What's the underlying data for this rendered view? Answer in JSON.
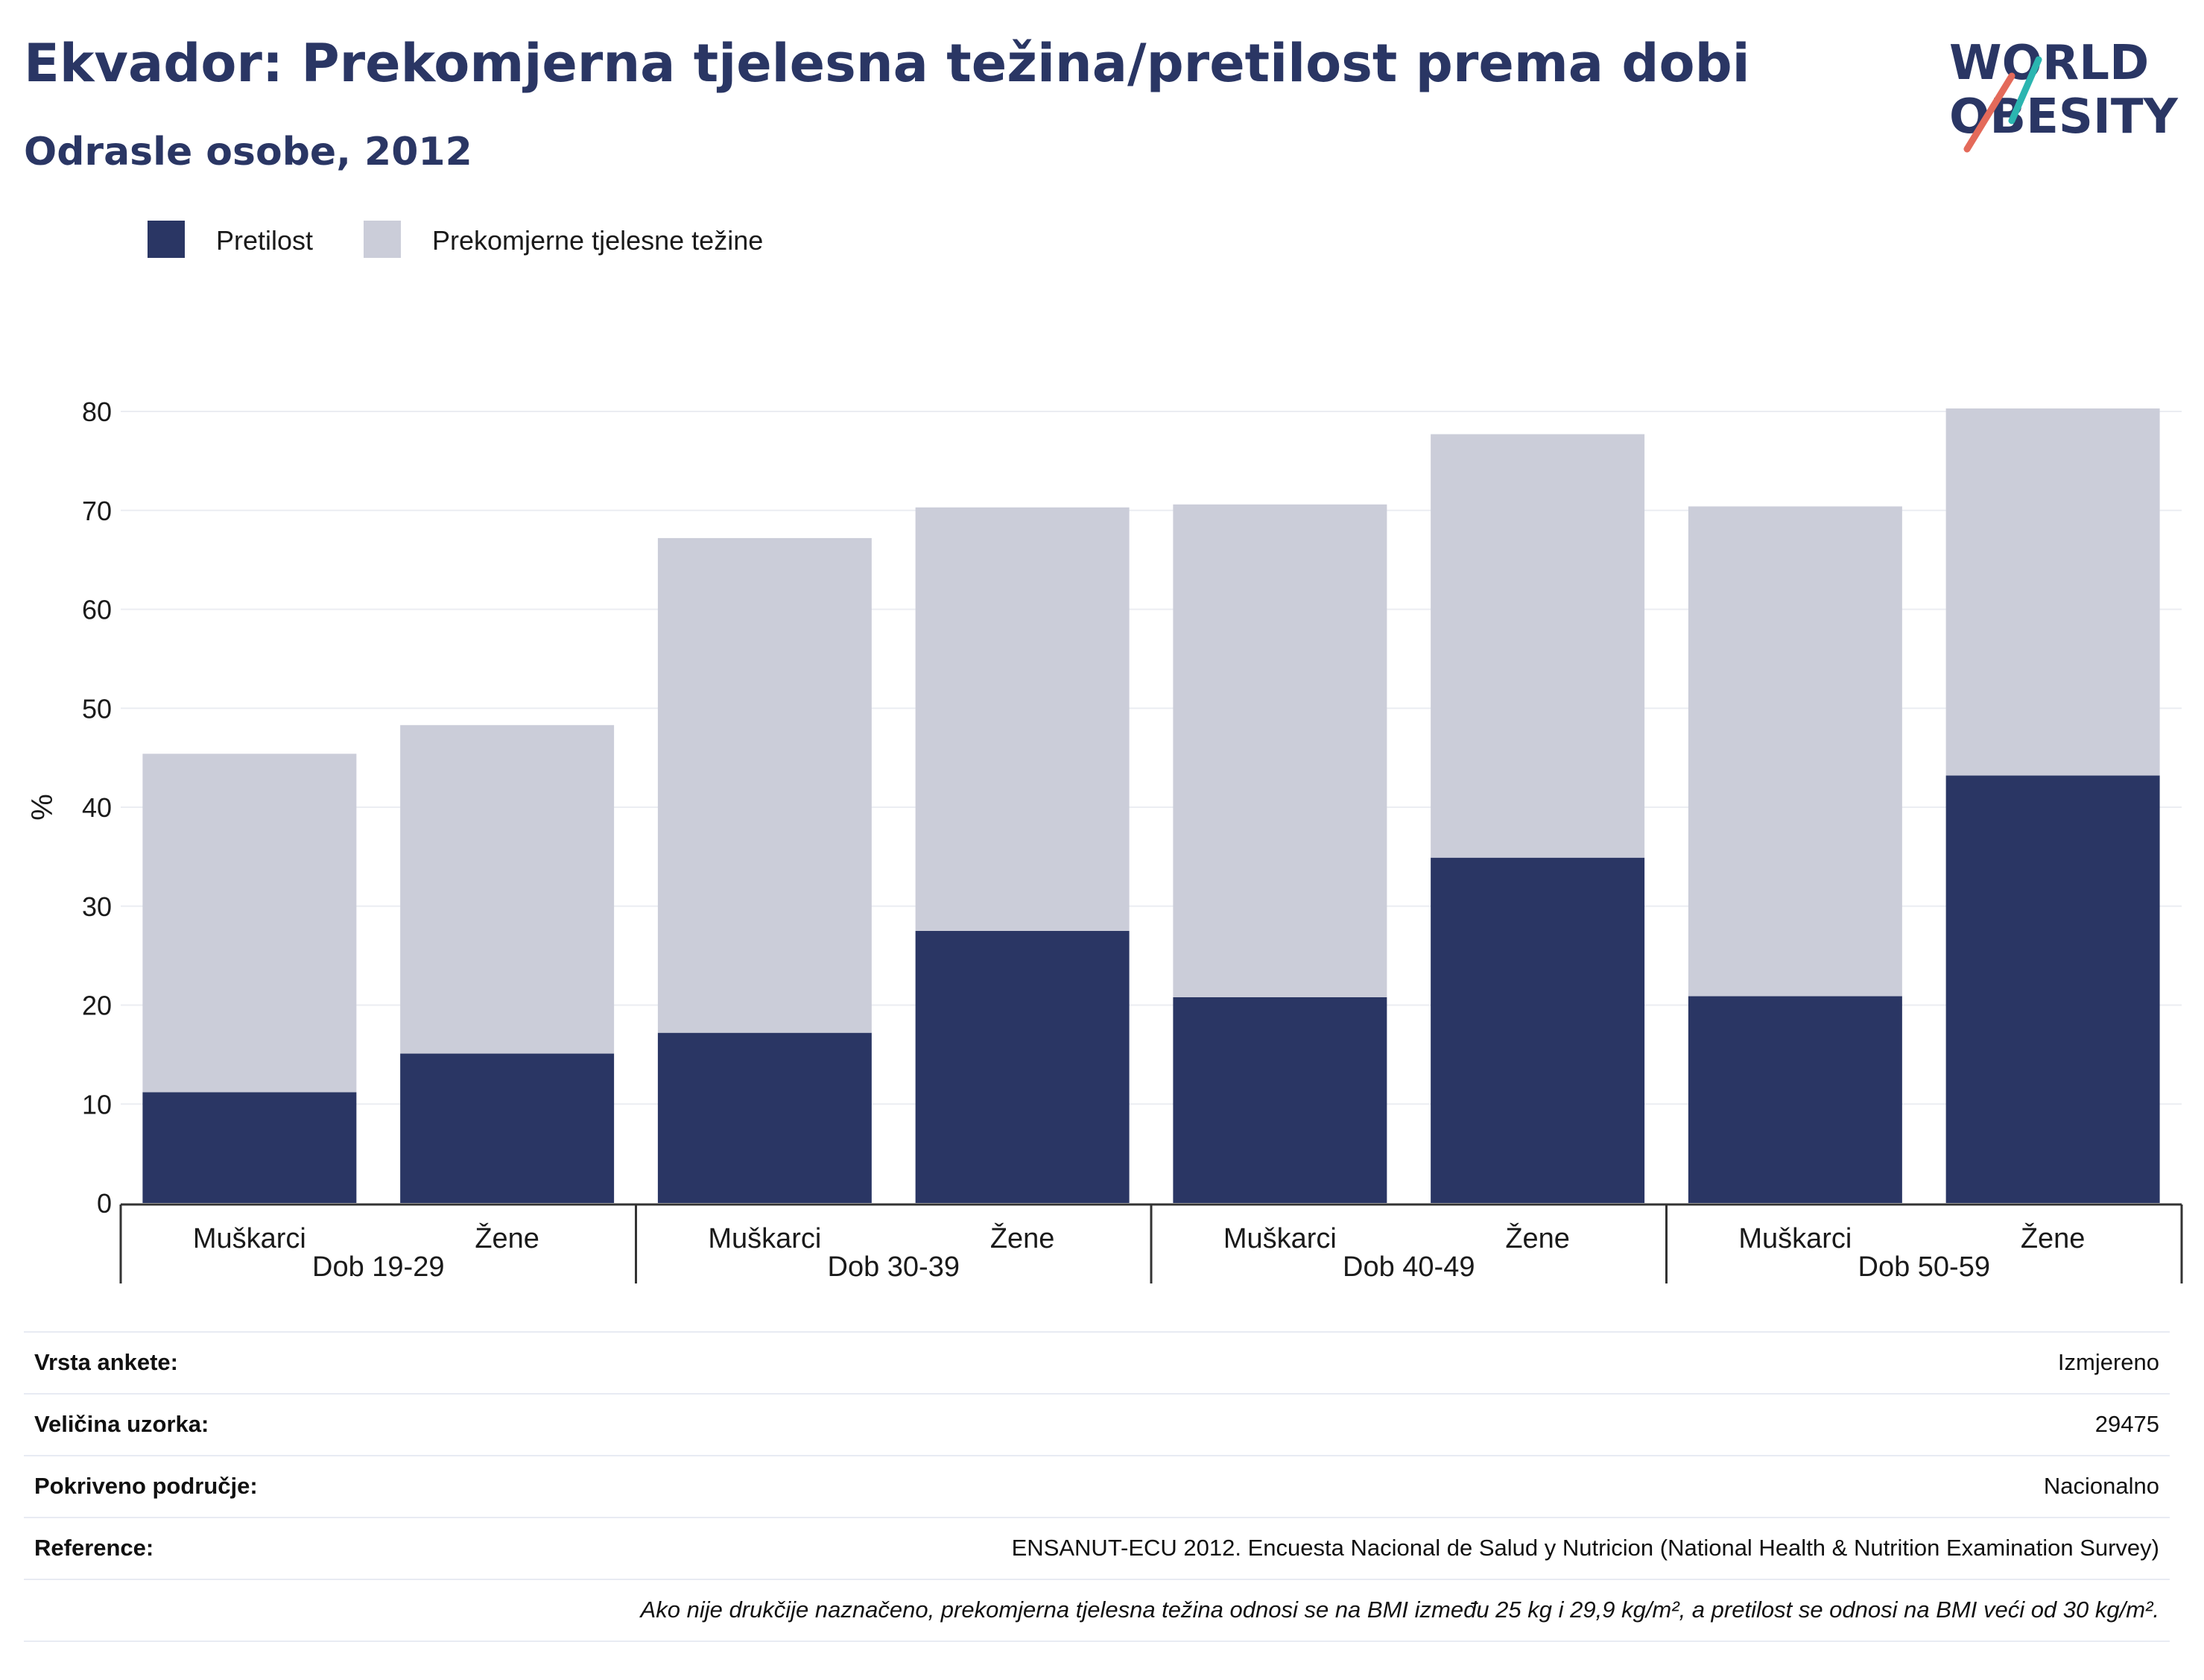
{
  "header": {
    "title": "Ekvador: Prekomjerna tjelesna težina/pretilost prema dobi",
    "subtitle": "Odrasle osobe, 2012"
  },
  "logo": {
    "line1": "WORLD",
    "line2": "OBESITY",
    "accent_teal": "#2bb5b0",
    "accent_red": "#e46a5a"
  },
  "legend": {
    "items": [
      {
        "label": "Pretilost",
        "color": "#2a3664"
      },
      {
        "label": "Prekomjerne tjelesne težine",
        "color": "#cbcdd9"
      }
    ]
  },
  "chart_data": {
    "type": "bar",
    "stacked": true,
    "ylabel": "%",
    "ylim": [
      0,
      80
    ],
    "yticks": [
      0,
      10,
      20,
      30,
      40,
      50,
      60,
      70,
      80
    ],
    "grid": true,
    "legend_position": "top-left",
    "groups": [
      {
        "label": "Dob 19-29",
        "categories": [
          "Muškarci",
          "Žene"
        ]
      },
      {
        "label": "Dob 30-39",
        "categories": [
          "Muškarci",
          "Žene"
        ]
      },
      {
        "label": "Dob 40-49",
        "categories": [
          "Muškarci",
          "Žene"
        ]
      },
      {
        "label": "Dob 50-59",
        "categories": [
          "Muškarci",
          "Žene"
        ]
      }
    ],
    "categories": [
      "Muškarci",
      "Žene",
      "Muškarci",
      "Žene",
      "Muškarci",
      "Žene",
      "Muškarci",
      "Žene"
    ],
    "series": [
      {
        "name": "Pretilost",
        "color": "#2a3664",
        "values": [
          11.2,
          15.1,
          17.2,
          27.5,
          20.8,
          34.9,
          20.9,
          43.2
        ]
      },
      {
        "name": "Prekomjerne tjelesne težine",
        "color": "#cbcdd9",
        "values": [
          34.2,
          33.2,
          50.0,
          42.8,
          49.8,
          42.8,
          49.5,
          37.1
        ]
      }
    ]
  },
  "info": {
    "rows": [
      {
        "key": "Vrsta ankete:",
        "value": "Izmjereno"
      },
      {
        "key": "Veličina uzorka:",
        "value": "29475"
      },
      {
        "key": "Pokriveno područje:",
        "value": "Nacionalno"
      },
      {
        "key": "Reference:",
        "value": "ENSANUT-ECU 2012. Encuesta Nacional de Salud y Nutricion (National Health & Nutrition Examination Survey)"
      }
    ],
    "note": "Ako nije drukčije naznačeno, prekomjerna tjelesna težina odnosi se na BMI između 25 kg i 29,9 kg/m², a pretilost se odnosi na BMI veći od 30 kg/m²."
  }
}
